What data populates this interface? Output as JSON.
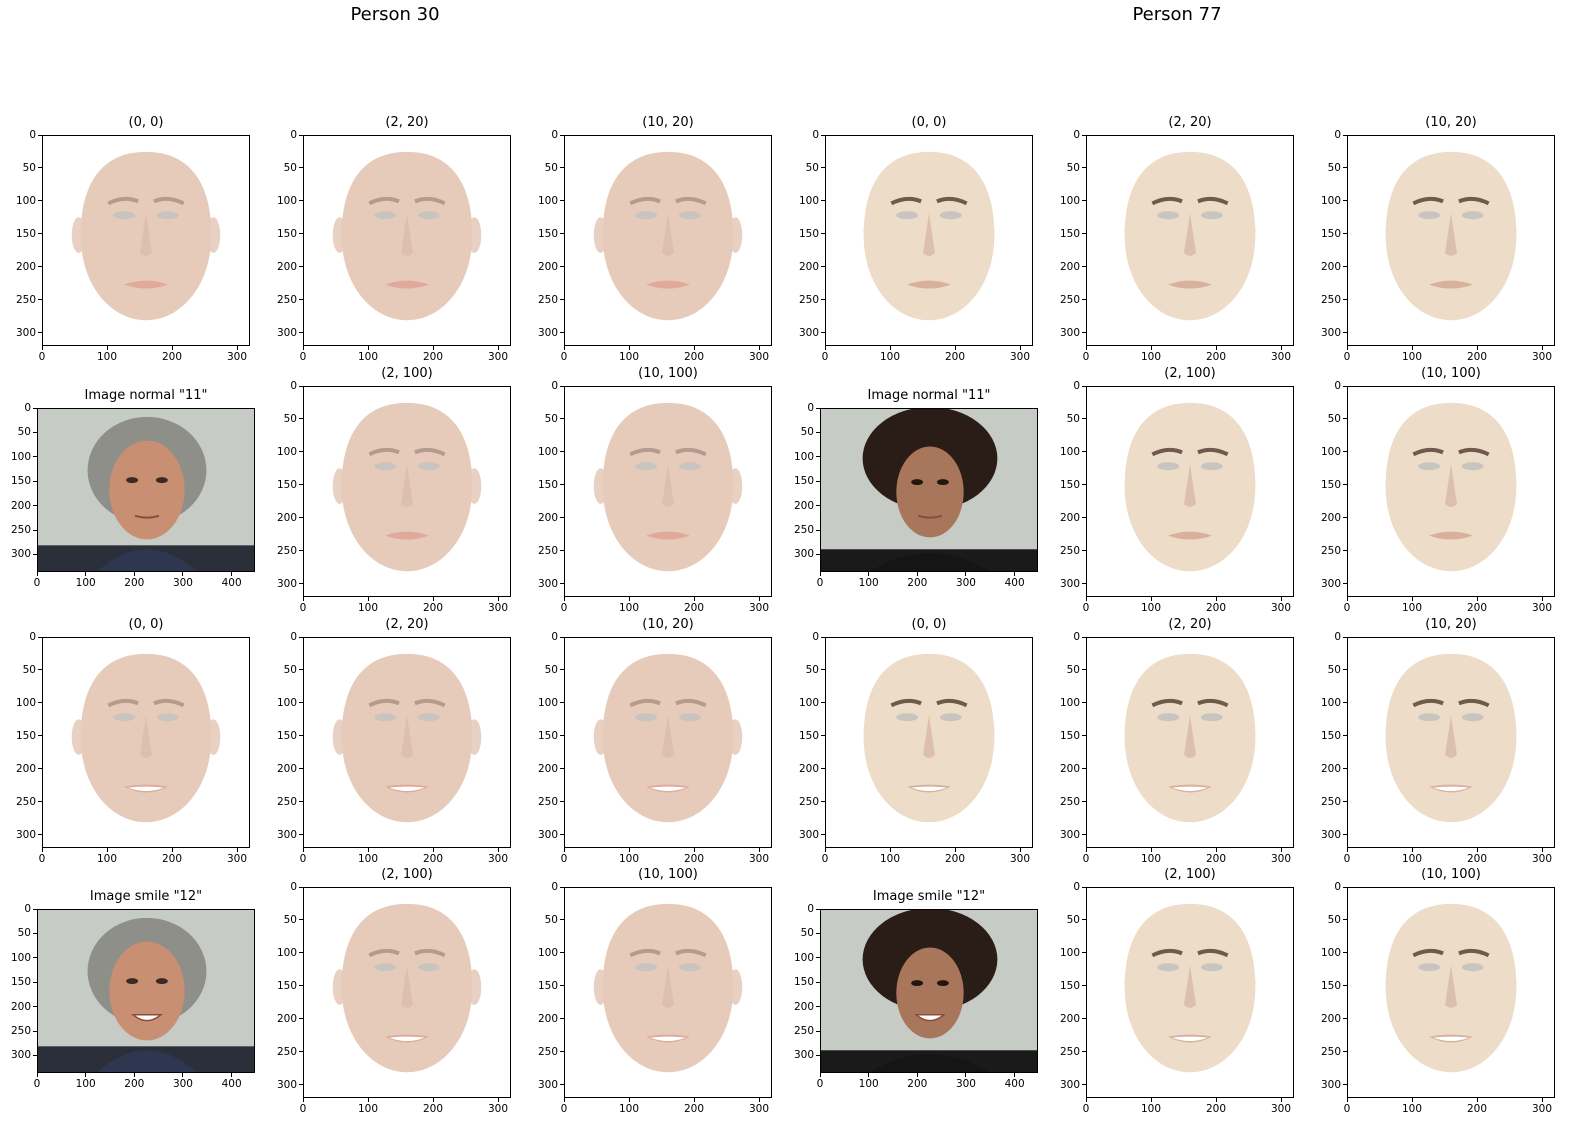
{
  "figure": {
    "columns": [
      {
        "person": "Person 30"
      },
      {
        "person": "Person 77"
      }
    ]
  },
  "panel_titles": {
    "r0": [
      "(0, 0)",
      "(2, 20)",
      "(10, 20)"
    ],
    "r1": [
      "Image normal \"11\"",
      "(2, 100)",
      "(10, 100)"
    ],
    "r2": [
      "(0, 0)",
      "(2, 20)",
      "(10, 20)"
    ],
    "r3": [
      "Image smile \"12\"",
      "(2, 100)",
      "(10, 100)"
    ]
  },
  "axes": {
    "face": {
      "xticks": [
        "0",
        "100",
        "200",
        "300"
      ],
      "yticks": [
        "0",
        "50",
        "100",
        "150",
        "200",
        "250",
        "300"
      ]
    },
    "photo": {
      "xticks": [
        "0",
        "100",
        "200",
        "300",
        "400"
      ],
      "yticks": [
        "0",
        "50",
        "100",
        "150",
        "200",
        "250",
        "300"
      ]
    }
  },
  "colors": {
    "p30_skin": "#e6cbbb",
    "p30_lips": "#e0a99c",
    "p77_skin": "#ecdcc8",
    "p77_lips": "#d9b09d",
    "hair_dark": "#2a1c16",
    "photo_bg": "#c7cbc6"
  }
}
